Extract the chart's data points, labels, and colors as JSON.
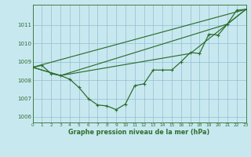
{
  "title": "Graphe pression niveau de la mer (hPa)",
  "bg_color": "#c8e8f0",
  "grid_color": "#90bfcf",
  "line_color": "#2d6e2d",
  "xlim": [
    0,
    23
  ],
  "ylim": [
    1005.7,
    1012.1
  ],
  "yticks": [
    1006,
    1007,
    1008,
    1009,
    1010,
    1011
  ],
  "xticks": [
    0,
    1,
    2,
    3,
    4,
    5,
    6,
    7,
    8,
    9,
    10,
    11,
    12,
    13,
    14,
    15,
    16,
    17,
    18,
    19,
    20,
    21,
    22,
    23
  ],
  "main_x": [
    0,
    1,
    2,
    3,
    4,
    5,
    6,
    7,
    8,
    9,
    10,
    11,
    12,
    13,
    14,
    15,
    16,
    17,
    18,
    19,
    20,
    21,
    22,
    23
  ],
  "main_y": [
    1008.7,
    1008.8,
    1008.35,
    1008.25,
    1008.05,
    1007.6,
    1007.0,
    1006.65,
    1006.6,
    1006.4,
    1006.7,
    1007.7,
    1007.8,
    1008.55,
    1008.55,
    1008.55,
    1009.0,
    1009.5,
    1009.45,
    1010.5,
    1010.45,
    1011.05,
    1011.8,
    1011.85
  ],
  "line2_x": [
    0,
    23
  ],
  "line2_y": [
    1008.7,
    1011.85
  ],
  "line3_x": [
    0,
    3,
    21,
    23
  ],
  "line3_y": [
    1008.7,
    1008.25,
    1011.05,
    1011.85
  ],
  "line4_x": [
    0,
    3,
    17,
    23
  ],
  "line4_y": [
    1008.7,
    1008.25,
    1009.45,
    1011.85
  ]
}
